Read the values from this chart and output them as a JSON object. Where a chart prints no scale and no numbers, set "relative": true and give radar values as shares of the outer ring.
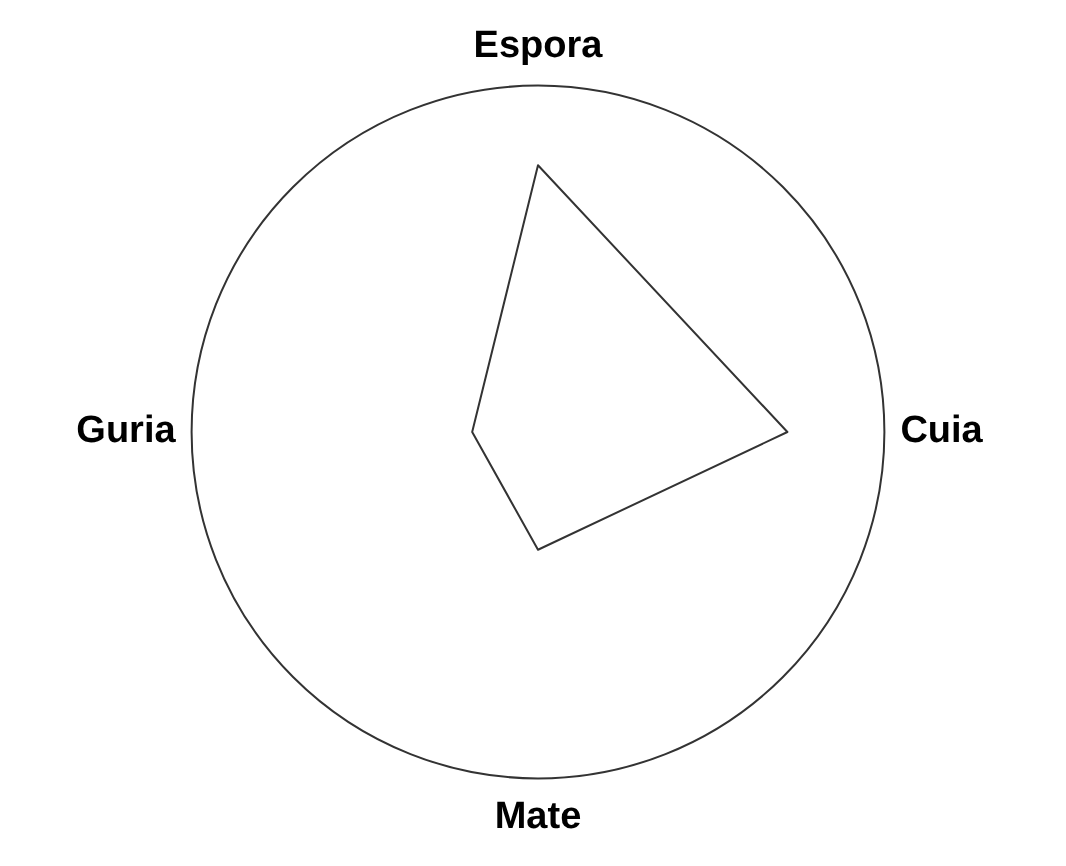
{
  "chart_data": {
    "type": "radar",
    "relative": true,
    "categories": [
      "Espora",
      "Cuia",
      "Mate",
      "Guria"
    ],
    "series": [
      {
        "color": "#333333",
        "values": [
          0.77,
          0.72,
          0.34,
          0.19
        ]
      }
    ],
    "marker": "none",
    "legend": false,
    "grid": true
  }
}
